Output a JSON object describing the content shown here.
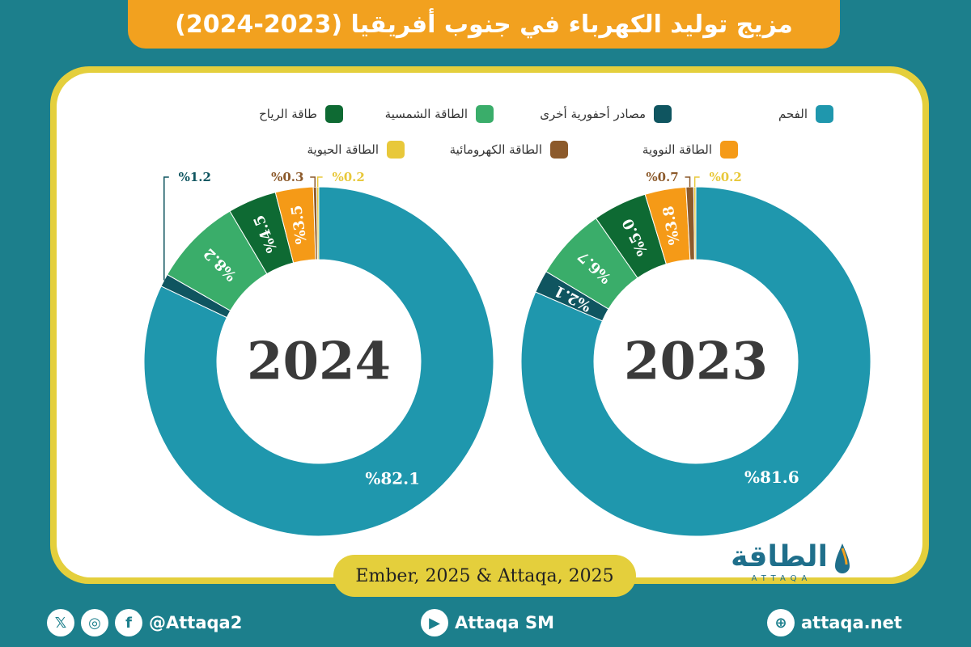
{
  "title": "مزيج توليد الكهرباء في جنوب أفريقيا (2023-2024)",
  "legend": [
    {
      "label": "الفحم",
      "color": "#1f97ad"
    },
    {
      "label": "مصادر أحفورية أخرى",
      "color": "#0f5560"
    },
    {
      "label": "الطاقة الشمسية",
      "color": "#3aad6a"
    },
    {
      "label": "طاقة الرياح",
      "color": "#0e6a33"
    },
    {
      "label": "الطاقة النووية",
      "color": "#f59a17"
    },
    {
      "label": "الطاقة الكهرومائية",
      "color": "#8c5a2b"
    },
    {
      "label": "الطاقة الحيوية",
      "color": "#e8c83a"
    }
  ],
  "chart_data": [
    {
      "type": "pie",
      "center_label": "2023",
      "categories": [
        "الفحم",
        "مصادر أحفورية أخرى",
        "الطاقة الشمسية",
        "طاقة الرياح",
        "الطاقة النووية",
        "الطاقة الكهرومائية",
        "الطاقة الحيوية"
      ],
      "values": [
        81.6,
        2.1,
        6.7,
        5.0,
        3.8,
        0.7,
        0.2
      ],
      "labels": [
        "%81.6",
        "%2.1",
        "%6.7",
        "%5.0",
        "%3.8",
        "%0.7",
        "%0.2"
      ]
    },
    {
      "type": "pie",
      "center_label": "2024",
      "categories": [
        "الفحم",
        "مصادر أحفورية أخرى",
        "الطاقة الشمسية",
        "طاقة الرياح",
        "الطاقة النووية",
        "الطاقة الكهرومائية",
        "الطاقة الحيوية"
      ],
      "values": [
        82.1,
        1.2,
        8.2,
        4.5,
        3.5,
        0.3,
        0.2
      ],
      "labels": [
        "%82.1",
        "%1.2",
        "%8.2",
        "%4.5",
        "%3.5",
        "%0.3",
        "%0.2"
      ]
    }
  ],
  "source": "Ember, 2025 & Attaqa, 2025",
  "brand": {
    "name": "الطاقة",
    "latin": "ATTAQA"
  },
  "footer": {
    "social_handle": "@Attaqa2",
    "youtube": "Attaqa SM",
    "website": "attaqa.net",
    "icons": [
      "x-icon",
      "instagram-icon",
      "facebook-icon",
      "youtube-icon",
      "globe-icon"
    ]
  }
}
